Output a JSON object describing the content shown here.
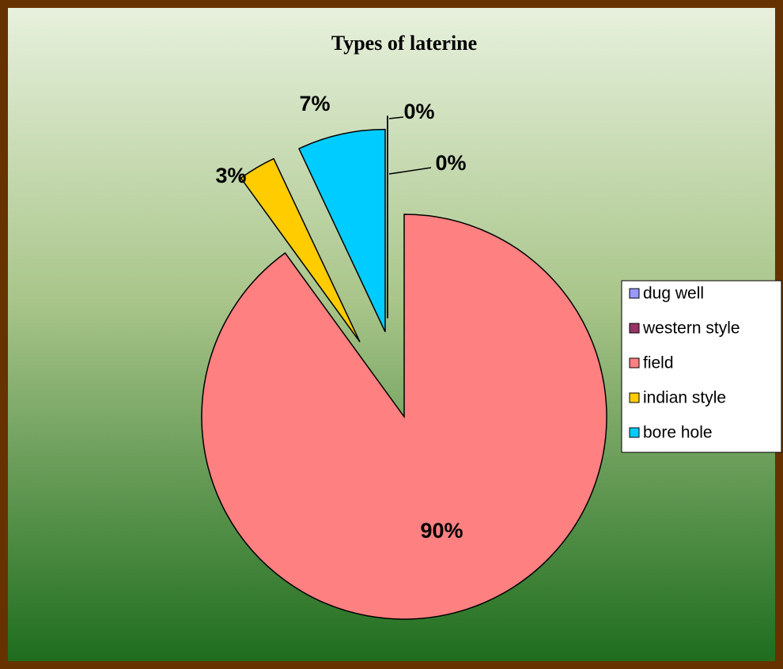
{
  "chart_data": {
    "type": "pie",
    "title": "Types of laterine",
    "categories": [
      "dug well",
      "western style",
      "field",
      "indian style",
      "bore hole"
    ],
    "values": [
      0,
      0,
      90,
      3,
      7
    ],
    "value_labels": [
      "0%",
      "0%",
      "90%",
      "3%",
      "7%"
    ],
    "colors": [
      "#9999ff",
      "#993366",
      "#ff8080",
      "#ffcc00",
      "#00ccff"
    ],
    "legend": "right"
  }
}
